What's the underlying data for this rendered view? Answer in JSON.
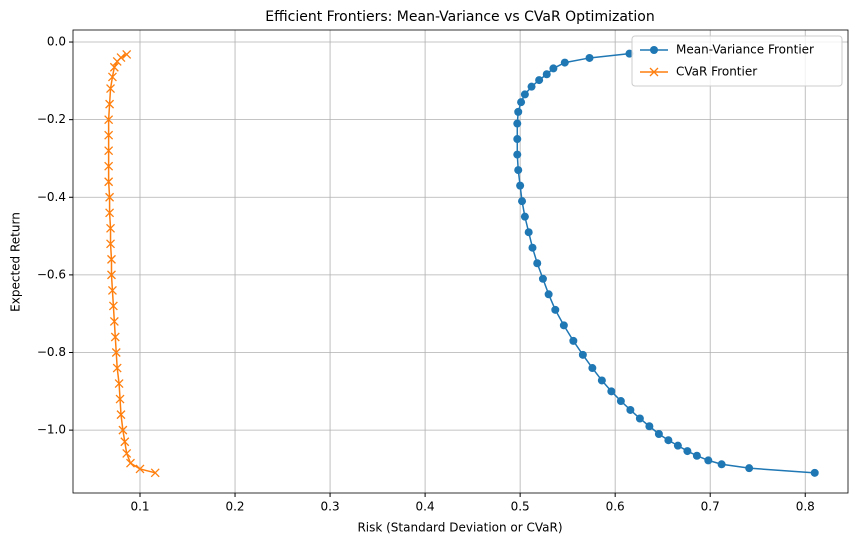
{
  "chart_data": {
    "type": "line",
    "title": "Efficient Frontiers: Mean-Variance vs CVaR Optimization",
    "xlabel": "Risk (Standard Deviation or CVaR)",
    "ylabel": "Expected Return",
    "xlim": [
      0.0295,
      0.845
    ],
    "ylim": [
      -1.162,
      0.031
    ],
    "xticks": [
      0.1,
      0.2,
      0.3,
      0.4,
      0.5,
      0.6,
      0.7,
      0.8
    ],
    "yticks": [
      {
        "value": 0,
        "label": "0.0"
      },
      {
        "value": -0.2,
        "label": "−0.2"
      },
      {
        "value": -0.4,
        "label": "−0.4"
      },
      {
        "value": -0.6,
        "label": "−0.6"
      },
      {
        "value": -0.8,
        "label": "−0.8"
      },
      {
        "value": -1.0,
        "label": "−1.0"
      }
    ],
    "grid": true,
    "legend": "upper right",
    "series": [
      {
        "name": "Mean-Variance Frontier",
        "color": "#1f77b4",
        "marker": "o",
        "x": [
          0.81,
          0.741,
          0.712,
          0.698,
          0.686,
          0.676,
          0.666,
          0.656,
          0.646,
          0.636,
          0.626,
          0.616,
          0.606,
          0.596,
          0.586,
          0.576,
          0.566,
          0.556,
          0.546,
          0.537,
          0.53,
          0.524,
          0.518,
          0.513,
          0.509,
          0.505,
          0.502,
          0.5,
          0.498,
          0.497,
          0.497,
          0.497,
          0.498,
          0.501,
          0.505,
          0.512,
          0.52,
          0.528,
          0.535,
          0.547,
          0.573,
          0.615
        ],
        "y": [
          -1.11,
          -1.098,
          -1.088,
          -1.078,
          -1.066,
          -1.054,
          -1.04,
          -1.026,
          -1.01,
          -0.99,
          -0.97,
          -0.948,
          -0.925,
          -0.9,
          -0.872,
          -0.84,
          -0.806,
          -0.77,
          -0.73,
          -0.69,
          -0.65,
          -0.61,
          -0.57,
          -0.53,
          -0.49,
          -0.45,
          -0.41,
          -0.37,
          -0.33,
          -0.29,
          -0.25,
          -0.21,
          -0.18,
          -0.155,
          -0.135,
          -0.115,
          -0.098,
          -0.083,
          -0.068,
          -0.053,
          -0.041,
          -0.03
        ]
      },
      {
        "name": "CVaR Frontier",
        "color": "#ff7f0e",
        "marker": "x",
        "x": [
          0.116,
          0.1,
          0.09,
          0.086,
          0.084,
          0.082,
          0.08,
          0.079,
          0.078,
          0.076,
          0.075,
          0.074,
          0.073,
          0.072,
          0.071,
          0.07,
          0.07,
          0.069,
          0.069,
          0.068,
          0.068,
          0.067,
          0.067,
          0.067,
          0.067,
          0.067,
          0.068,
          0.069,
          0.071,
          0.073,
          0.076,
          0.08,
          0.086
        ],
        "y": [
          -1.11,
          -1.1,
          -1.085,
          -1.06,
          -1.03,
          -1.0,
          -0.96,
          -0.92,
          -0.88,
          -0.84,
          -0.8,
          -0.76,
          -0.72,
          -0.68,
          -0.64,
          -0.6,
          -0.56,
          -0.52,
          -0.48,
          -0.44,
          -0.4,
          -0.36,
          -0.32,
          -0.28,
          -0.24,
          -0.2,
          -0.16,
          -0.12,
          -0.09,
          -0.065,
          -0.05,
          -0.04,
          -0.032
        ]
      }
    ]
  }
}
